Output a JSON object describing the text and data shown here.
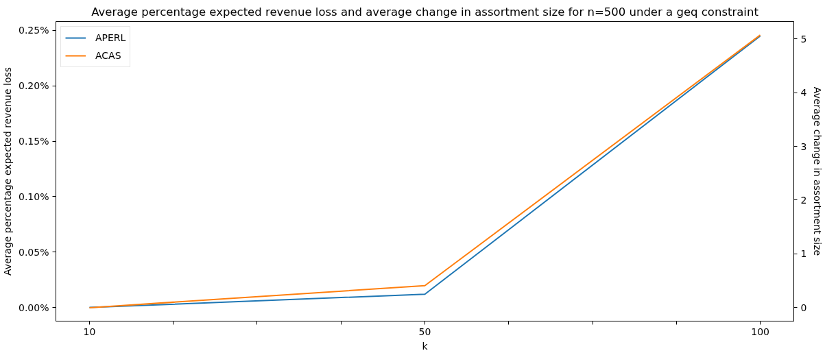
{
  "chart_data": {
    "type": "line",
    "title": "Average percentage expected revenue loss and average change in assortment size for n=500 under a geq constraint",
    "xlabel": "k",
    "ylabel": "Average percentage expected revenue loss",
    "y2label": "Average change in assortment size",
    "categories": [
      "10",
      "50",
      "100"
    ],
    "series": [
      {
        "name": "APERL",
        "color": "#1f77b4",
        "values": [
          0,
          0.012,
          0.245
        ]
      },
      {
        "name": "ACAS",
        "color": "#ff7f0e",
        "axis": "y2",
        "values": [
          0,
          0.41,
          5.07
        ]
      }
    ],
    "ylim": [
      -0.0123,
      0.258
    ],
    "yticks": [
      {
        "value": 0,
        "label": "0.00%"
      },
      {
        "value": 0.05,
        "label": "0.05%"
      },
      {
        "value": 0.1,
        "label": "0.10%"
      },
      {
        "value": 0.15,
        "label": "0.15%"
      },
      {
        "value": 0.2,
        "label": "0.20%"
      },
      {
        "value": 0.25,
        "label": "0.25%"
      }
    ],
    "y2lim": [
      -0.25,
      5.32
    ],
    "y2ticks": [
      0,
      1,
      2,
      3,
      4,
      5
    ],
    "legend": "top left",
    "line_style": "solid"
  }
}
